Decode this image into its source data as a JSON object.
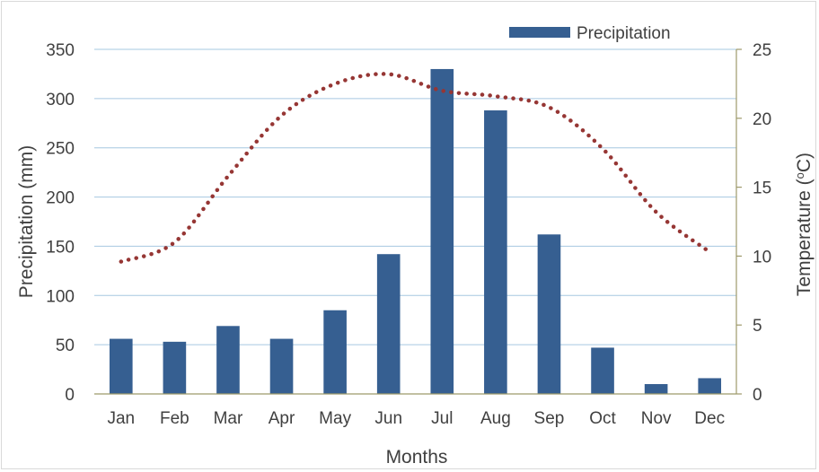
{
  "chart_data": {
    "type": "bar",
    "categories": [
      "Jan",
      "Feb",
      "Mar",
      "Apr",
      "May",
      "Jun",
      "Jul",
      "Aug",
      "Sep",
      "Oct",
      "Nov",
      "Dec"
    ],
    "series": [
      {
        "name": "Precipitation",
        "type": "bar",
        "axis": "left",
        "color": "#365f91",
        "values": [
          56,
          53,
          69,
          56,
          85,
          142,
          330,
          288,
          162,
          47,
          10,
          16
        ]
      },
      {
        "type": "line",
        "style": "dotted",
        "axis": "right",
        "color": "#963634",
        "values": [
          9.6,
          11.0,
          15.8,
          20.2,
          22.5,
          23.2,
          22.0,
          21.6,
          20.8,
          17.8,
          13.2,
          10.3
        ]
      }
    ],
    "title": "",
    "xlabel": "Months",
    "ylabel": "Precipitation (mm)",
    "y2label_main": "Temperature (",
    "y2label_sup": "o",
    "y2label_unit": "C)",
    "ylim": [
      0,
      350
    ],
    "y2lim": [
      0,
      25
    ],
    "yticks": [
      "0",
      "50",
      "100",
      "150",
      "200",
      "250",
      "300",
      "350"
    ],
    "y2ticks": [
      "0",
      "5",
      "10",
      "15",
      "20",
      "25"
    ],
    "grid": true,
    "legend": "top-right",
    "gridColor": "#a6c8e0",
    "axisColor": "#9e9a6b"
  }
}
